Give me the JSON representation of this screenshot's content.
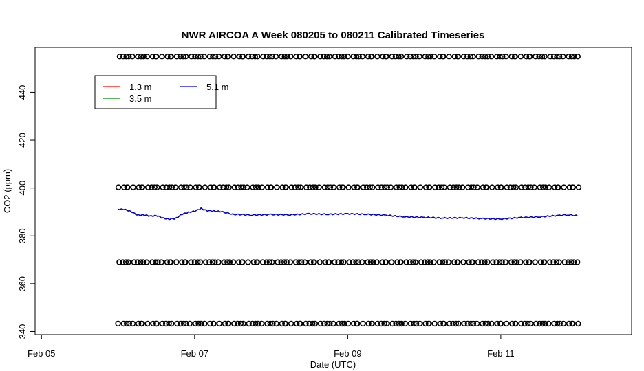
{
  "chart_data": {
    "type": "line",
    "title": "NWR AIRCOA A  Week 080205 to 080211  Calibrated Timeseries",
    "xlabel": "Date (UTC)",
    "ylabel": "CO2 (ppm)",
    "xlim": [
      "Feb 04 22:00",
      "Feb 12 17:00"
    ],
    "ylim": [
      338.7,
      458.8
    ],
    "x_ticks": [
      "Feb 05",
      "Feb 07",
      "Feb 09",
      "Feb 11"
    ],
    "y_ticks": [
      340,
      360,
      380,
      400,
      420,
      440
    ],
    "grid": false,
    "legend": {
      "placement": "top-left",
      "entries": [
        {
          "name": "1.3 m",
          "color": "#ff0000"
        },
        {
          "name": "3.5 m",
          "color": "#008000"
        },
        {
          "name": "5.1 m",
          "color": "#0000cc"
        }
      ]
    },
    "series": [
      {
        "name": "5.1 m",
        "style": "line",
        "color": "#0000cc",
        "x": [
          "Feb 06 00:00",
          "Feb 06 02:00",
          "Feb 06 04:00",
          "Feb 06 06:00",
          "Feb 06 08:00",
          "Feb 06 10:00",
          "Feb 06 12:00",
          "Feb 06 14:00",
          "Feb 06 16:00",
          "Feb 06 18:00",
          "Feb 06 20:00",
          "Feb 06 22:00",
          "Feb 07 00:00",
          "Feb 07 02:00",
          "Feb 07 04:00",
          "Feb 07 06:00",
          "Feb 07 08:00",
          "Feb 07 12:00",
          "Feb 07 18:00",
          "Feb 08 00:00",
          "Feb 08 06:00",
          "Feb 08 12:00",
          "Feb 08 18:00",
          "Feb 09 00:00",
          "Feb 09 06:00",
          "Feb 09 12:00",
          "Feb 09 18:00",
          "Feb 10 00:00",
          "Feb 10 06:00",
          "Feb 10 12:00",
          "Feb 10 18:00",
          "Feb 11 00:00",
          "Feb 11 06:00",
          "Feb 11 12:00",
          "Feb 11 18:00",
          "Feb 11 21:00",
          "Feb 12 00:00"
        ],
        "values": [
          391.2,
          391.0,
          390.3,
          388.6,
          388.8,
          388.2,
          388.5,
          387.4,
          387.0,
          387.2,
          389.0,
          389.8,
          390.3,
          391.4,
          390.5,
          390.4,
          390.2,
          389.0,
          388.7,
          388.9,
          388.8,
          389.2,
          389.0,
          389.2,
          389.0,
          388.6,
          387.9,
          387.7,
          387.4,
          387.5,
          387.2,
          387.0,
          387.6,
          387.9,
          388.5,
          388.8,
          388.4
        ]
      },
      {
        "name": "",
        "style": "points",
        "x_start": "Feb 06 00:00",
        "x_end": "Feb 12 00:00",
        "levels": [
          343.3,
          369.0,
          400.3,
          455.0
        ]
      }
    ]
  }
}
